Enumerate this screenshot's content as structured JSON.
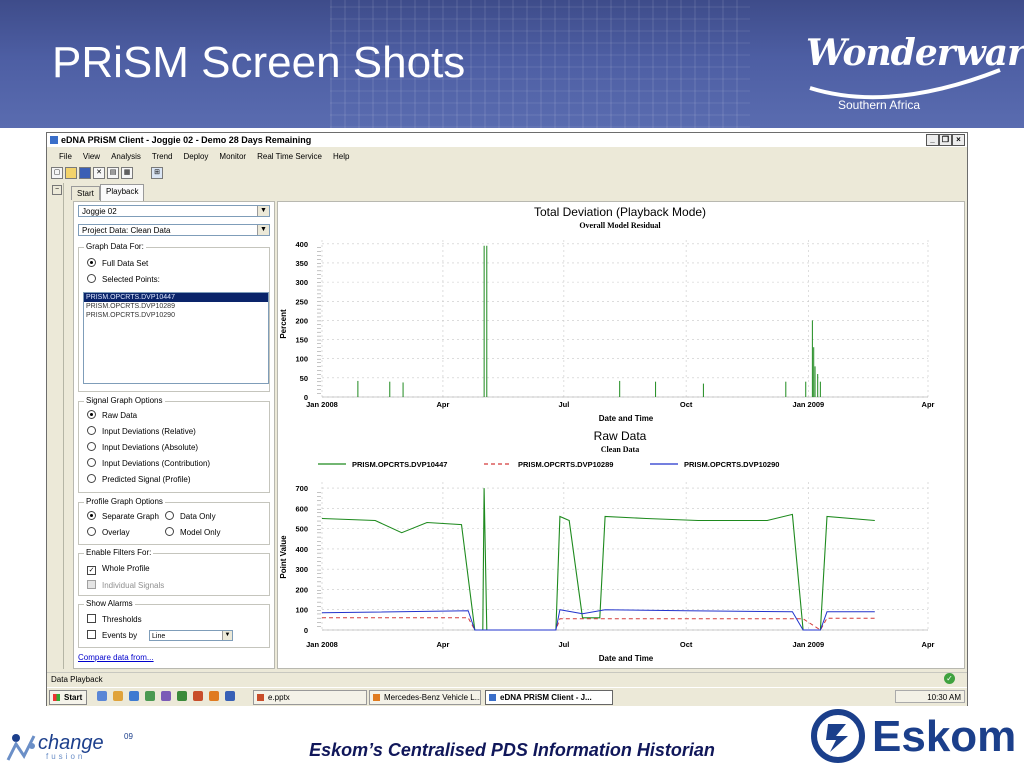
{
  "slide": {
    "title": "PRiSM Screen Shots",
    "logo_text": "Wonderware",
    "logo_subtitle": "Southern Africa",
    "footer": "Eskom’s Centralised PDS Information Historian",
    "change_logo": {
      "text": "change",
      "superscript": "09",
      "sub": "fusion"
    },
    "eskom_logo": "Eskom"
  },
  "window": {
    "title": "eDNA PRiSM Client - Joggie 02 - Demo 28 Days Remaining",
    "controls": [
      "_",
      "❐",
      "×"
    ],
    "menu": [
      "File",
      "View",
      "Analysis",
      "Trend",
      "Deploy",
      "Monitor",
      "Real Time Service",
      "Help"
    ],
    "tabs": [
      "Start",
      "Playback"
    ],
    "status": "Data Playback"
  },
  "panel": {
    "project_select": "Joggie 02",
    "data_select": "Project Data: Clean Data",
    "graph_data_for": {
      "legend": "Graph Data For:",
      "options": [
        "Full Data Set",
        "Selected Points:"
      ],
      "selected": 0,
      "points": [
        "PRISM.OPCRTS.DVP10447",
        "PRISM.OPCRTS.DVP10289",
        "PRISM.OPCRTS.DVP10290"
      ]
    },
    "signal_graph_options": {
      "legend": "Signal Graph Options",
      "options": [
        "Raw Data",
        "Input Deviations (Relative)",
        "Input Deviations (Absolute)",
        "Input Deviations (Contribution)",
        "Predicted Signal (Profile)"
      ],
      "selected": 0
    },
    "profile_graph_options": {
      "legend": "Profile Graph Options",
      "options": [
        "Separate Graph",
        "Data Only",
        "Overlay",
        "Model Only"
      ]
    },
    "enable_filters": {
      "legend": "Enable Filters For:",
      "whole_profile": "Whole Profile",
      "individual_signals": "Individual Signals"
    },
    "show_alarms": {
      "legend": "Show Alarms",
      "thresholds": "Thresholds",
      "events_by": "Events by",
      "events_value": "Line"
    },
    "compare_link": "Compare data from..."
  },
  "taskbar": {
    "start": "Start",
    "buttons": [
      "e.pptx",
      "Mercedes-Benz Vehicle L...",
      "eDNA PRiSM Client - J..."
    ],
    "clock": "10:30 AM"
  },
  "chart_data": [
    {
      "type": "line",
      "title": "Total Deviation (Playback Mode)",
      "subtitle": "Overall Model Residual",
      "xlabel": "Date and Time",
      "ylabel": "Percent",
      "xticks": [
        "Jan 2008",
        "Apr",
        "Jul",
        "Oct",
        "Jan 2009",
        "Apr"
      ],
      "yticks": [
        0,
        50,
        100,
        150,
        200,
        250,
        300,
        350,
        400
      ],
      "ylim": [
        0,
        410
      ],
      "xlim": [
        "2008-01-01",
        "2009-04-01"
      ],
      "grid": true,
      "series": [
        {
          "color": "#1e8a1e",
          "spikes": [
            [
              "2008-01-28",
              42
            ],
            [
              "2008-02-21",
              40
            ],
            [
              "2008-03-02",
              38
            ],
            [
              "2008-05-02",
              395
            ],
            [
              "2008-05-04",
              395
            ],
            [
              "2008-08-12",
              42
            ],
            [
              "2008-09-08",
              40
            ],
            [
              "2008-10-14",
              35
            ],
            [
              "2008-12-15",
              40
            ],
            [
              "2008-12-30",
              40
            ],
            [
              "2009-01-04",
              200
            ],
            [
              "2009-01-05",
              130
            ],
            [
              "2009-01-06",
              80
            ],
            [
              "2009-01-08",
              60
            ],
            [
              "2009-01-10",
              40
            ]
          ]
        }
      ]
    },
    {
      "type": "line",
      "title": "Raw Data",
      "subtitle": "Clean Data",
      "xlabel": "Date and Time",
      "ylabel": "Point Value",
      "xticks": [
        "Jan 2008",
        "Apr",
        "Jul",
        "Oct",
        "Jan 2009",
        "Apr"
      ],
      "yticks": [
        0,
        100,
        200,
        300,
        400,
        500,
        600,
        700
      ],
      "ylim": [
        0,
        730
      ],
      "xlim": [
        "2008-01-01",
        "2009-04-01"
      ],
      "grid": true,
      "legend_position": "top",
      "series": [
        {
          "name": "PRISM.OPCRTS.DVP10447",
          "color": "#1e8a1e",
          "style": "solid",
          "points": [
            [
              "2008-01-01",
              550
            ],
            [
              "2008-02-10",
              540
            ],
            [
              "2008-03-01",
              480
            ],
            [
              "2008-03-20",
              530
            ],
            [
              "2008-04-15",
              520
            ],
            [
              "2008-04-25",
              0
            ],
            [
              "2008-05-01",
              0
            ],
            [
              "2008-05-02",
              700
            ],
            [
              "2008-05-04",
              0
            ],
            [
              "2008-06-25",
              0
            ],
            [
              "2008-06-28",
              560
            ],
            [
              "2008-07-05",
              540
            ],
            [
              "2008-07-15",
              60
            ],
            [
              "2008-07-28",
              60
            ],
            [
              "2008-08-01",
              560
            ],
            [
              "2008-09-01",
              550
            ],
            [
              "2008-10-10",
              540
            ],
            [
              "2008-11-01",
              540
            ],
            [
              "2008-12-01",
              540
            ],
            [
              "2008-12-20",
              570
            ],
            [
              "2008-12-28",
              0
            ],
            [
              "2009-01-10",
              0
            ],
            [
              "2009-01-15",
              560
            ],
            [
              "2009-02-20",
              540
            ]
          ]
        },
        {
          "name": "PRISM.OPCRTS.DVP10289",
          "color": "#d43b3b",
          "style": "dashed",
          "points": [
            [
              "2008-01-01",
              60
            ],
            [
              "2008-04-20",
              60
            ],
            [
              "2008-04-25",
              0
            ],
            [
              "2008-06-25",
              0
            ],
            [
              "2008-06-28",
              55
            ],
            [
              "2008-12-28",
              55
            ],
            [
              "2009-01-10",
              0
            ],
            [
              "2009-01-15",
              58
            ],
            [
              "2009-02-20",
              58
            ]
          ]
        },
        {
          "name": "PRISM.OPCRTS.DVP10290",
          "color": "#2233cc",
          "style": "solid",
          "points": [
            [
              "2008-01-01",
              85
            ],
            [
              "2008-04-20",
              95
            ],
            [
              "2008-04-25",
              0
            ],
            [
              "2008-06-25",
              0
            ],
            [
              "2008-06-28",
              100
            ],
            [
              "2008-07-15",
              80
            ],
            [
              "2008-08-01",
              100
            ],
            [
              "2008-10-01",
              95
            ],
            [
              "2008-12-20",
              90
            ],
            [
              "2008-12-28",
              0
            ],
            [
              "2009-01-10",
              0
            ],
            [
              "2009-01-15",
              90
            ],
            [
              "2009-02-20",
              90
            ]
          ]
        }
      ]
    }
  ]
}
